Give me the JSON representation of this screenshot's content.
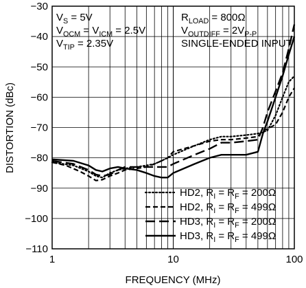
{
  "chart_data": {
    "type": "line",
    "x_scale": "log",
    "xlim": [
      1,
      100
    ],
    "ylim": [
      -110,
      -30
    ],
    "xlabel": "FREQUENCY (MHz)",
    "ylabel": "DISTORTION (dBc)",
    "x_tick_labels": [
      "1",
      "10",
      "100"
    ],
    "x_tick_values": [
      1,
      10,
      100
    ],
    "y_ticks": [
      -30,
      -40,
      -50,
      -60,
      -70,
      -80,
      -90,
      -100,
      -110
    ],
    "grid": true,
    "conditions": {
      "left": [
        {
          "main": "V",
          "sub": "S",
          "rest": " = 5V"
        },
        {
          "main": "V",
          "sub": "OCM",
          "rest": " = V",
          "sub2": "ICM",
          "rest2": " = 2.5V"
        },
        {
          "main": "V",
          "sub": "TIP",
          "rest": " = 2.35V"
        }
      ],
      "right": [
        {
          "main": "R",
          "sub": "LOAD",
          "rest": " = 800Ω"
        },
        {
          "main": "V",
          "sub": "OUTDIFF",
          "rest": " = 2V",
          "sub2": "P-P",
          "rest2": ""
        },
        {
          "main": "SINGLE-ENDED INPUT",
          "sub": "",
          "rest": ""
        }
      ]
    },
    "legend_position": "bottom-right",
    "series": [
      {
        "name_main": "HD2, R",
        "name_sub": "I",
        "name_rest": " = R",
        "name_sub2": "F",
        "name_rest2": " = 200Ω",
        "style": "dotted",
        "x": [
          1,
          1.5,
          2,
          2.3,
          2.6,
          3,
          3.5,
          4,
          5,
          6,
          7,
          8,
          9,
          10,
          15,
          20,
          25,
          30,
          40,
          50,
          55,
          60,
          70,
          80,
          90,
          100
        ],
        "y": [
          -81.5,
          -82.5,
          -84.5,
          -86,
          -86.5,
          -85,
          -84,
          -83.5,
          -83,
          -82.5,
          -82,
          -81,
          -80,
          -79,
          -76,
          -74,
          -73,
          -73,
          -72.5,
          -72,
          -71.5,
          -71,
          -66,
          -60,
          -55,
          -53
        ]
      },
      {
        "name_main": "HD2, R",
        "name_sub": "I",
        "name_rest": " = R",
        "name_sub2": "F",
        "name_rest2": " = 499Ω",
        "style": "short-dash",
        "x": [
          1,
          1.3,
          1.7,
          2,
          2.3,
          2.6,
          3,
          3.5,
          4,
          5,
          6,
          7,
          8,
          9,
          10,
          15,
          20,
          25,
          30,
          40,
          50,
          55,
          60,
          70,
          80,
          90,
          100
        ],
        "y": [
          -81.5,
          -82.5,
          -84.5,
          -86,
          -87.5,
          -87.2,
          -86,
          -85,
          -84,
          -83.5,
          -83,
          -82,
          -81,
          -80,
          -78,
          -76,
          -74.5,
          -74,
          -74,
          -73.5,
          -73,
          -71,
          -70.5,
          -69,
          -65,
          -60,
          -57
        ]
      },
      {
        "name_main": "HD3, R",
        "name_sub": "I",
        "name_rest": " = R",
        "name_sub2": "F",
        "name_rest2": " = 200Ω",
        "style": "long-dash",
        "x": [
          1,
          1.5,
          2,
          2.3,
          2.6,
          3,
          3.5,
          4,
          5,
          6,
          7,
          8,
          9,
          10,
          15,
          20,
          25,
          30,
          40,
          50,
          55,
          60,
          70,
          80,
          90,
          100
        ],
        "y": [
          -81,
          -82,
          -84,
          -85.5,
          -86,
          -85.5,
          -84,
          -83,
          -83,
          -83,
          -83,
          -83,
          -83,
          -82,
          -79,
          -77,
          -75,
          -75,
          -74.5,
          -74,
          -70,
          -65,
          -58,
          -52,
          -44,
          -36
        ]
      },
      {
        "name_main": "HD3, R",
        "name_sub": "I",
        "name_rest": " = R",
        "name_sub2": "F",
        "name_rest2": " = 499Ω",
        "style": "solid",
        "x": [
          1,
          1.5,
          2,
          2.3,
          2.6,
          3,
          3.5,
          4,
          5,
          6,
          7,
          8,
          9,
          10,
          15,
          20,
          25,
          30,
          40,
          50,
          55,
          60,
          70,
          80,
          90,
          100
        ],
        "y": [
          -80.5,
          -81,
          -82.5,
          -84,
          -84.5,
          -83.5,
          -83,
          -83.5,
          -84,
          -85,
          -86,
          -86.5,
          -86.5,
          -85,
          -82,
          -80,
          -79,
          -79,
          -79,
          -78,
          -72,
          -68,
          -60,
          -53,
          -46,
          -40
        ]
      }
    ]
  }
}
